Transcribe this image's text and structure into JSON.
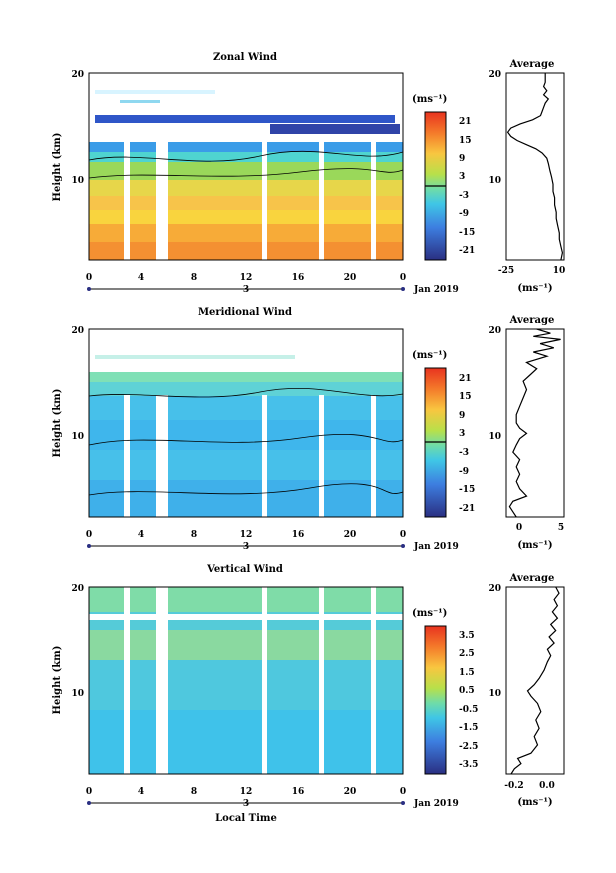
{
  "chart_data": [
    {
      "type": "heatmap",
      "title": "Zonal Wind",
      "ylabel": "Height (km)",
      "y_ticks": [
        "10",
        "20"
      ],
      "x_ticks": [
        "0",
        "4",
        "8",
        "12",
        "16",
        "20",
        "0"
      ],
      "date_day": "3",
      "date_label": "Jan 2019",
      "unit_label": "(ms⁻¹)",
      "colorbar_ticks": [
        "21",
        "15",
        "9",
        "3",
        "-3",
        "-9",
        "-15",
        "-21"
      ],
      "ylim": [
        2,
        20
      ],
      "xlim": [
        0,
        24
      ],
      "profile": {
        "title": "Average",
        "x_ticks": [
          "-25",
          "10"
        ],
        "y_ticks": [
          "10",
          "20"
        ],
        "unit_label": "(ms⁻¹)",
        "xlim": [
          -25,
          12
        ],
        "points": [
          [
            10,
            2
          ],
          [
            11,
            2.7
          ],
          [
            10,
            3.3
          ],
          [
            9,
            4
          ],
          [
            9,
            4.6
          ],
          [
            8,
            5.3
          ],
          [
            7,
            6
          ],
          [
            7,
            6.6
          ],
          [
            6,
            7.3
          ],
          [
            6,
            8
          ],
          [
            5,
            8.6
          ],
          [
            5,
            9.3
          ],
          [
            4,
            10
          ],
          [
            3,
            10.6
          ],
          [
            2,
            11.3
          ],
          [
            1,
            11.8
          ],
          [
            -2,
            12.3
          ],
          [
            -6,
            12.7
          ],
          [
            -12,
            13.1
          ],
          [
            -18,
            13.5
          ],
          [
            -22,
            13.9
          ],
          [
            -24,
            14.3
          ],
          [
            -22,
            14.7
          ],
          [
            -16,
            15.1
          ],
          [
            -8,
            15.5
          ],
          [
            -3,
            15.9
          ],
          [
            -2,
            16.3
          ],
          [
            -1,
            16.7
          ],
          [
            0,
            17.1
          ],
          [
            2,
            17.5
          ],
          [
            -1,
            17.9
          ],
          [
            1,
            18.3
          ],
          [
            -1,
            18.7
          ],
          [
            0,
            19.1
          ],
          [
            0,
            19.5
          ],
          [
            0,
            20
          ]
        ]
      }
    },
    {
      "type": "heatmap",
      "title": "Meridional Wind",
      "ylabel": "Height (km)",
      "y_ticks": [
        "10",
        "20"
      ],
      "x_ticks": [
        "0",
        "4",
        "8",
        "12",
        "16",
        "20",
        "0"
      ],
      "date_day": "3",
      "date_label": "Jan 2019",
      "unit_label": "(ms⁻¹)",
      "colorbar_ticks": [
        "21",
        "15",
        "9",
        "3",
        "-3",
        "-9",
        "-15",
        "-21"
      ],
      "ylim": [
        2,
        20
      ],
      "xlim": [
        0,
        24
      ],
      "profile": {
        "title": "Average",
        "x_ticks": [
          "0",
          "5"
        ],
        "y_ticks": [
          "10",
          "20"
        ],
        "unit_label": "(ms⁻¹)",
        "xlim": [
          -3,
          5.5
        ],
        "points": [
          [
            -1.5,
            2
          ],
          [
            -2,
            2.5
          ],
          [
            -2.5,
            3
          ],
          [
            -2,
            3.5
          ],
          [
            0,
            4
          ],
          [
            -1,
            4.7
          ],
          [
            -1.5,
            5.4
          ],
          [
            -1,
            6.1
          ],
          [
            -1.5,
            6.8
          ],
          [
            -1,
            7.5
          ],
          [
            -2,
            8.2
          ],
          [
            -1.5,
            8.9
          ],
          [
            -1,
            9.5
          ],
          [
            0,
            10
          ],
          [
            -1,
            10.5
          ],
          [
            -1.5,
            11
          ],
          [
            -1.5,
            11.8
          ],
          [
            -1,
            12.6
          ],
          [
            -0.5,
            13.4
          ],
          [
            0,
            14.2
          ],
          [
            -0.5,
            15
          ],
          [
            0.5,
            15.6
          ],
          [
            1.5,
            16.2
          ],
          [
            0,
            16.8
          ],
          [
            3,
            17.4
          ],
          [
            1,
            17.8
          ],
          [
            4,
            18.2
          ],
          [
            2,
            18.6
          ],
          [
            5,
            19
          ],
          [
            1,
            19.3
          ],
          [
            3.5,
            19.6
          ],
          [
            1.5,
            20
          ]
        ]
      }
    },
    {
      "type": "heatmap",
      "title": "Vertical Wind",
      "ylabel": "Height (km)",
      "xlabel": "Local Time",
      "y_ticks": [
        "10",
        "20"
      ],
      "x_ticks": [
        "0",
        "4",
        "8",
        "12",
        "16",
        "20",
        "0"
      ],
      "date_day": "3",
      "date_label": "Jan 2019",
      "unit_label": "(ms⁻¹)",
      "colorbar_ticks": [
        "3.5",
        "2.5",
        "1.5",
        "0.5",
        "-0.5",
        "-1.5",
        "-2.5",
        "-3.5"
      ],
      "ylim": [
        2,
        20
      ],
      "xlim": [
        0,
        24
      ],
      "profile": {
        "title": "Average",
        "x_ticks": [
          "-0.2",
          "0.0"
        ],
        "y_ticks": [
          "10",
          "20"
        ],
        "unit_label": "(ms⁻¹)",
        "xlim": [
          -0.25,
          0.1
        ],
        "points": [
          [
            -0.22,
            2
          ],
          [
            -0.2,
            2.5
          ],
          [
            -0.16,
            3
          ],
          [
            -0.18,
            3.5
          ],
          [
            -0.1,
            4
          ],
          [
            -0.06,
            4.8
          ],
          [
            -0.08,
            5.6
          ],
          [
            -0.05,
            6.4
          ],
          [
            -0.07,
            7.2
          ],
          [
            -0.04,
            8
          ],
          [
            -0.06,
            8.8
          ],
          [
            -0.1,
            9.5
          ],
          [
            -0.12,
            10
          ],
          [
            -0.08,
            10.6
          ],
          [
            -0.05,
            11.2
          ],
          [
            -0.02,
            12
          ],
          [
            0.0,
            12.8
          ],
          [
            0.02,
            13.4
          ],
          [
            0.0,
            14
          ],
          [
            0.04,
            14.6
          ],
          [
            0.01,
            15.2
          ],
          [
            0.05,
            15.8
          ],
          [
            0.02,
            16.4
          ],
          [
            0.06,
            17
          ],
          [
            0.03,
            17.6
          ],
          [
            0.06,
            18.2
          ],
          [
            0.04,
            18.8
          ],
          [
            0.07,
            19.4
          ],
          [
            0.05,
            20
          ]
        ]
      }
    }
  ]
}
